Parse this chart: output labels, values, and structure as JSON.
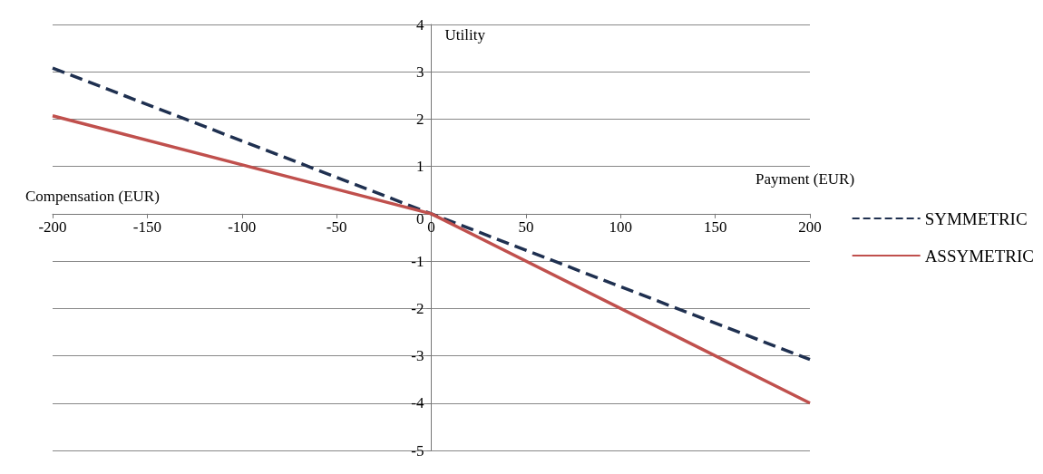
{
  "chart_data": {
    "type": "line",
    "xlabel": "Payment (EUR)",
    "ylabel": "Utility",
    "annotations": [
      "Compensation (EUR)"
    ],
    "x": [
      -200,
      0,
      200
    ],
    "series": [
      {
        "name": "SYMMETRIC",
        "color": "#1f3050",
        "line_style": "dashed",
        "values": [
          3.08,
          0,
          -3.08
        ]
      },
      {
        "name": "ASSYMETRIC",
        "color": "#c0504d",
        "line_style": "solid",
        "values": [
          2.07,
          0,
          -4
        ]
      }
    ],
    "xlim": [
      -200,
      200
    ],
    "xticks": [
      -200,
      -150,
      -100,
      -50,
      0,
      50,
      100,
      150,
      200
    ],
    "ylim": [
      -5,
      4
    ],
    "yticks": [
      -5,
      -4,
      -3,
      -2,
      -1,
      0,
      1,
      2,
      3,
      4
    ],
    "grid": "y",
    "legend": "right",
    "marker": "none"
  }
}
